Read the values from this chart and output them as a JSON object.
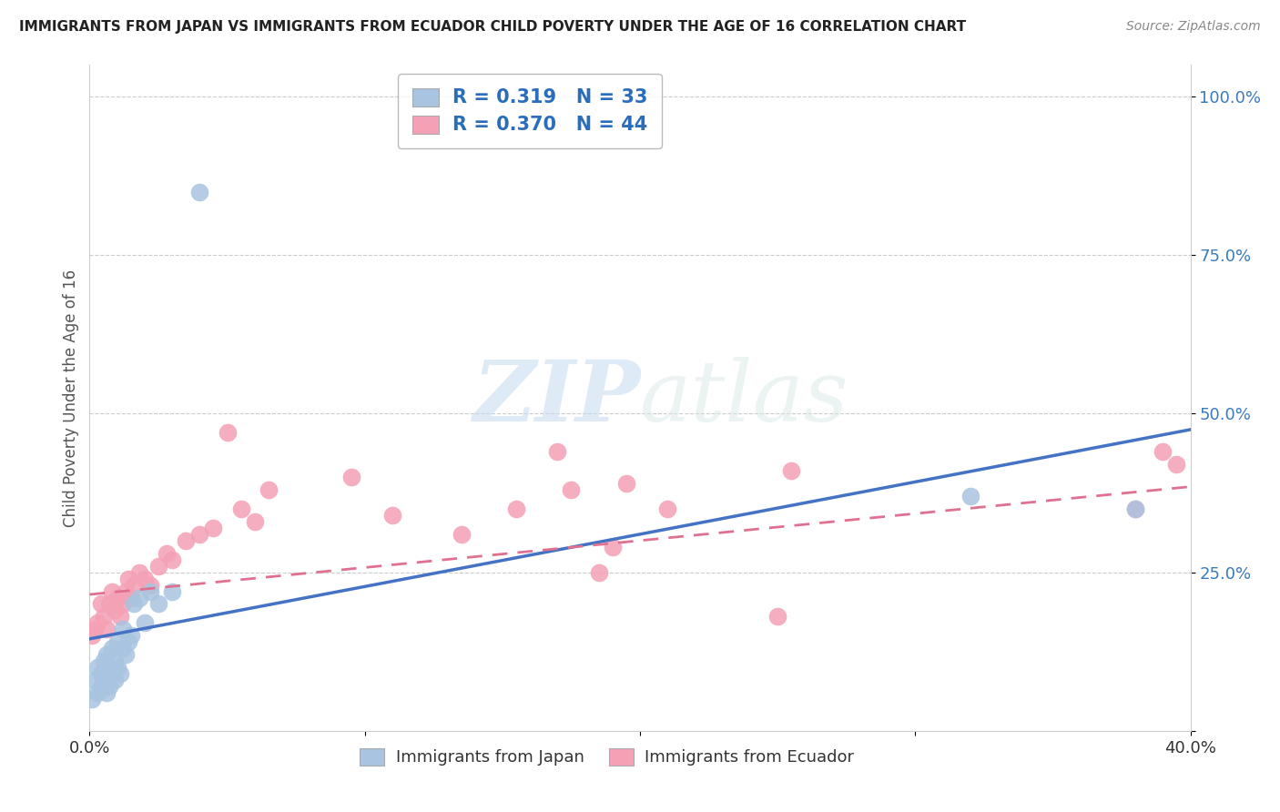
{
  "title": "IMMIGRANTS FROM JAPAN VS IMMIGRANTS FROM ECUADOR CHILD POVERTY UNDER THE AGE OF 16 CORRELATION CHART",
  "source": "Source: ZipAtlas.com",
  "ylabel": "Child Poverty Under the Age of 16",
  "xlim": [
    0.0,
    0.4
  ],
  "ylim": [
    0.0,
    1.05
  ],
  "japan_R": 0.319,
  "japan_N": 33,
  "ecuador_R": 0.37,
  "ecuador_N": 44,
  "japan_color": "#a8c4e0",
  "ecuador_color": "#f4a0b5",
  "japan_line_color": "#4472c4",
  "ecuador_line_color": "#e07090",
  "watermark_zip": "ZIP",
  "watermark_atlas": "atlas",
  "background_color": "#ffffff",
  "japan_x": [
    0.001,
    0.002,
    0.003,
    0.003,
    0.004,
    0.004,
    0.005,
    0.005,
    0.006,
    0.006,
    0.007,
    0.007,
    0.008,
    0.008,
    0.009,
    0.009,
    0.01,
    0.01,
    0.011,
    0.012,
    0.012,
    0.013,
    0.014,
    0.015,
    0.016,
    0.018,
    0.02,
    0.022,
    0.025,
    0.03,
    0.04,
    0.32,
    0.38
  ],
  "japan_y": [
    0.05,
    0.08,
    0.06,
    0.1,
    0.07,
    0.09,
    0.08,
    0.11,
    0.06,
    0.12,
    0.07,
    0.1,
    0.09,
    0.13,
    0.08,
    0.11,
    0.1,
    0.14,
    0.09,
    0.13,
    0.16,
    0.12,
    0.14,
    0.15,
    0.2,
    0.21,
    0.17,
    0.22,
    0.2,
    0.22,
    0.85,
    0.37,
    0.35
  ],
  "ecuador_x": [
    0.001,
    0.002,
    0.003,
    0.004,
    0.005,
    0.006,
    0.007,
    0.008,
    0.009,
    0.01,
    0.011,
    0.012,
    0.013,
    0.014,
    0.015,
    0.016,
    0.018,
    0.02,
    0.022,
    0.025,
    0.028,
    0.03,
    0.035,
    0.04,
    0.045,
    0.05,
    0.055,
    0.06,
    0.065,
    0.095,
    0.11,
    0.135,
    0.155,
    0.17,
    0.175,
    0.185,
    0.19,
    0.195,
    0.21,
    0.25,
    0.255,
    0.38,
    0.39,
    0.395
  ],
  "ecuador_y": [
    0.15,
    0.16,
    0.17,
    0.2,
    0.18,
    0.16,
    0.2,
    0.22,
    0.19,
    0.21,
    0.18,
    0.2,
    0.22,
    0.24,
    0.21,
    0.23,
    0.25,
    0.24,
    0.23,
    0.26,
    0.28,
    0.27,
    0.3,
    0.31,
    0.32,
    0.47,
    0.35,
    0.33,
    0.38,
    0.4,
    0.34,
    0.31,
    0.35,
    0.44,
    0.38,
    0.25,
    0.29,
    0.39,
    0.35,
    0.18,
    0.41,
    0.35,
    0.44,
    0.42
  ],
  "japan_line_x": [
    0.0,
    0.4
  ],
  "japan_line_y": [
    0.145,
    0.475
  ],
  "ecuador_line_x": [
    0.0,
    0.4
  ],
  "ecuador_line_y": [
    0.215,
    0.385
  ]
}
